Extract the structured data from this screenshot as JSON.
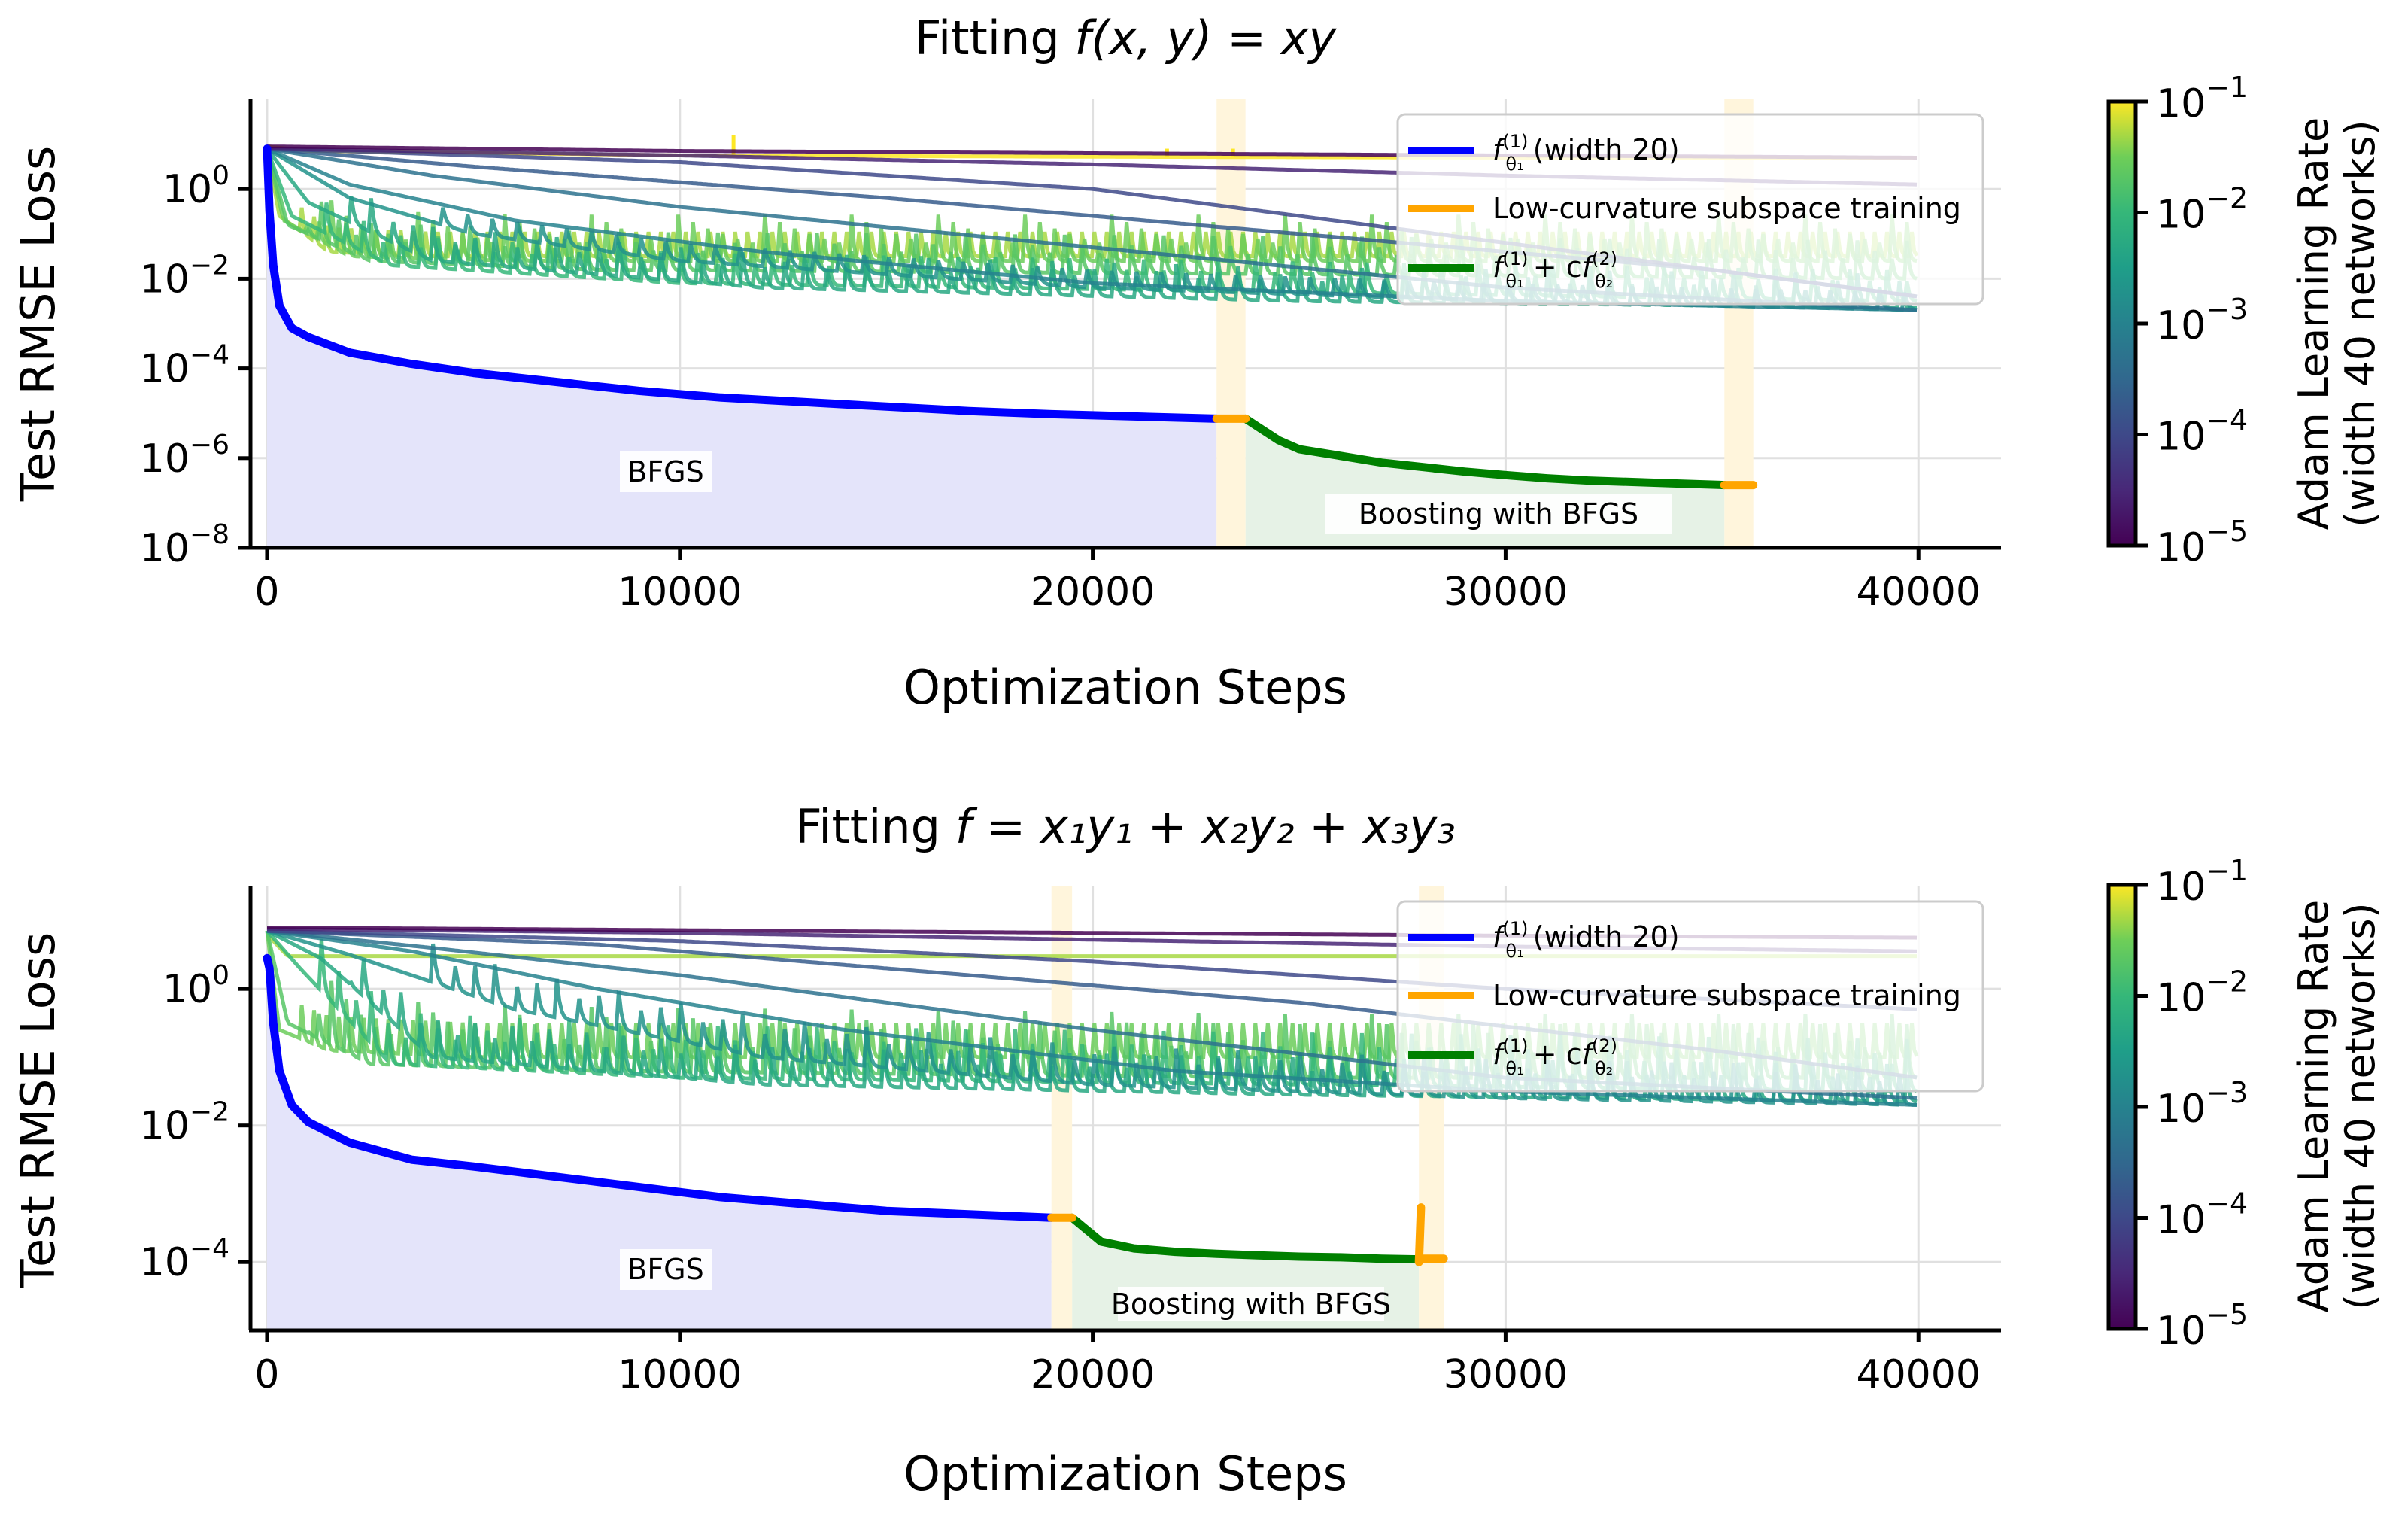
{
  "figure": {
    "colorbar": {
      "label_line1": "Adam Learning Rate",
      "label_line2": "(width 40 networks)",
      "range": [
        1e-05,
        0.1
      ],
      "colormap": "viridis",
      "tick_labels": [
        {
          "base": "10",
          "exp": "−1",
          "value": 0.1
        },
        {
          "base": "10",
          "exp": "−2",
          "value": 0.01
        },
        {
          "base": "10",
          "exp": "−3",
          "value": 0.001
        },
        {
          "base": "10",
          "exp": "−4",
          "value": 0.0001
        },
        {
          "base": "10",
          "exp": "−5",
          "value": 1e-05
        }
      ]
    },
    "legend": {
      "entries": [
        {
          "label_prefix": "f",
          "label_sup": "(1)",
          "label_sub": "θ₁",
          "label_suffix": " (width 20)",
          "color": "#0000ff"
        },
        {
          "label_full": "Low-curvature subspace training",
          "color": "#ffa500"
        },
        {
          "label_prefix": "f",
          "label_sup": "(1)",
          "label_sub": "θ₁",
          "label_plus": " + c",
          "label_f2": "f",
          "label_sup2": "(2)",
          "label_sub2": "θ₂",
          "color": "#008000"
        }
      ]
    },
    "colors": {
      "bfgs": "#0000ff",
      "subspace": "#ffa500",
      "boost": "#008000",
      "bfgs_fill": "#e4e4fa",
      "boost_fill": "#e6f2e6",
      "subspace_fill": "#fff5dc"
    }
  },
  "chart_data": [
    {
      "type": "line",
      "title_prefix": "Fitting ",
      "title_math": "f(x, y) = xy",
      "xlabel": "Optimization Steps",
      "ylabel": "Test RMSE Loss",
      "xlim": [
        -400,
        42000
      ],
      "ylim_log10": [
        -8,
        2
      ],
      "xticks": [
        {
          "value": 0,
          "label": "0"
        },
        {
          "value": 10000,
          "label": "10000"
        },
        {
          "value": 20000,
          "label": "20000"
        },
        {
          "value": 30000,
          "label": "30000"
        },
        {
          "value": 40000,
          "label": "40000"
        }
      ],
      "yticks": [
        {
          "exp10": 0,
          "base": "10",
          "exp": "0"
        },
        {
          "exp10": -2,
          "base": "10",
          "exp": "−2"
        },
        {
          "exp10": -4,
          "base": "10",
          "exp": "−4"
        },
        {
          "exp10": -6,
          "base": "10",
          "exp": "−6"
        },
        {
          "exp10": -8,
          "base": "10",
          "exp": "−8"
        }
      ],
      "annotations": {
        "bfgs": "BFGS",
        "boost": "Boosting with BFGS"
      },
      "bfgs_series": {
        "name": "BFGS (width 20)",
        "x": [
          0,
          60,
          150,
          300,
          600,
          1000,
          2000,
          3500,
          5000,
          7000,
          9000,
          11000,
          13000,
          15000,
          17000,
          19000,
          21000,
          23000
        ],
        "log10_y": [
          0.9,
          -0.5,
          -1.7,
          -2.6,
          -3.1,
          -3.3,
          -3.65,
          -3.9,
          -4.1,
          -4.3,
          -4.5,
          -4.65,
          -4.75,
          -4.85,
          -4.95,
          -5.02,
          -5.07,
          -5.12
        ]
      },
      "subspace_segments": [
        {
          "x": [
            23000,
            23700
          ],
          "log10_y": [
            -5.12,
            -5.12
          ]
        },
        {
          "x": [
            35300,
            36000
          ],
          "log10_y": [
            -6.6,
            -6.6
          ]
        }
      ],
      "boost_series": {
        "x": [
          23700,
          24000,
          24500,
          25000,
          26000,
          27000,
          28000,
          29000,
          30000,
          31000,
          32000,
          33000,
          34000,
          35300
        ],
        "log10_y": [
          -5.12,
          -5.3,
          -5.6,
          -5.8,
          -5.95,
          -6.1,
          -6.2,
          -6.3,
          -6.38,
          -6.45,
          -6.5,
          -6.53,
          -6.56,
          -6.6
        ]
      },
      "bfgs_fill_x": [
        0,
        23000
      ],
      "subspace_fill_x": [
        [
          23000,
          23700
        ],
        [
          35300,
          36000
        ]
      ],
      "boost_fill_x": [
        23700,
        35300
      ],
      "adam_series": [
        {
          "lr": 0.1,
          "x": [
            0,
            1000,
            10000,
            20000,
            30000,
            40000
          ],
          "log10_y": [
            0.95,
            0.85,
            0.75,
            0.72,
            0.7,
            0.7
          ],
          "spikes": [
            {
              "x": 11300,
              "log10_y": 1.2
            },
            {
              "x": 21800,
              "log10_y": 0.9
            },
            {
              "x": 23400,
              "log10_y": 0.9
            }
          ]
        },
        {
          "lr": 0.05,
          "x": [
            0,
            300,
            1500,
            4000,
            20000,
            40000
          ],
          "log10_y": [
            0.9,
            -0.6,
            -1.4,
            -1.5,
            -1.5,
            -1.5
          ],
          "osc": {
            "period": 300,
            "start": 800,
            "amp": 1.2
          }
        },
        {
          "lr": 0.03,
          "x": [
            0,
            400,
            2000,
            6000,
            20000,
            40000
          ],
          "log10_y": [
            0.9,
            -0.7,
            -1.5,
            -1.6,
            -1.6,
            -1.6
          ],
          "osc": {
            "period": 350,
            "start": 900,
            "amp": 1.1
          }
        },
        {
          "lr": 0.02,
          "x": [
            0,
            500,
            2500,
            8000,
            25000,
            40000
          ],
          "log10_y": [
            0.9,
            -0.8,
            -1.6,
            -1.8,
            -1.9,
            -2.0
          ],
          "osc": {
            "period": 400,
            "start": 1000,
            "amp": 1.0
          }
        },
        {
          "lr": 0.01,
          "x": [
            0,
            600,
            3000,
            10000,
            25000,
            40000
          ],
          "log10_y": [
            0.9,
            -0.6,
            -1.7,
            -2.1,
            -2.3,
            -2.5
          ],
          "osc": {
            "period": 450,
            "start": 1200,
            "amp": 1.0
          }
        },
        {
          "lr": 0.005,
          "x": [
            0,
            1000,
            4000,
            12000,
            25000,
            40000
          ],
          "log10_y": [
            0.9,
            -0.3,
            -1.6,
            -2.2,
            -2.5,
            -2.65
          ],
          "osc": {
            "period": 500,
            "start": 2000,
            "amp": 0.8
          }
        },
        {
          "lr": 0.002,
          "x": [
            0,
            2000,
            5000,
            10000,
            20000,
            30000,
            40000
          ],
          "log10_y": [
            0.9,
            -0.2,
            -1.0,
            -1.6,
            -2.2,
            -2.5,
            -2.7
          ],
          "osc": {
            "period": 600,
            "start": 4000,
            "amp": 0.6
          }
        },
        {
          "lr": 0.001,
          "x": [
            0,
            2000,
            6000,
            12000,
            20000,
            30000,
            40000
          ],
          "log10_y": [
            0.9,
            0.1,
            -0.7,
            -1.4,
            -2.1,
            -2.5,
            -2.7
          ]
        },
        {
          "lr": 0.0005,
          "x": [
            0,
            4000,
            10000,
            20000,
            30000,
            40000
          ],
          "log10_y": [
            0.9,
            0.3,
            -0.4,
            -1.3,
            -2.2,
            -2.7
          ]
        },
        {
          "lr": 0.0002,
          "x": [
            0,
            5000,
            15000,
            25000,
            35000,
            40000
          ],
          "log10_y": [
            0.9,
            0.5,
            -0.2,
            -1.0,
            -1.8,
            -2.4
          ]
        },
        {
          "lr": 0.0001,
          "x": [
            0,
            10000,
            20000,
            30000,
            40000
          ],
          "log10_y": [
            0.9,
            0.6,
            0.0,
            -1.2,
            -2.4
          ]
        },
        {
          "lr": 3e-05,
          "x": [
            0,
            10000,
            20000,
            30000,
            40000
          ],
          "log10_y": [
            0.9,
            0.75,
            0.55,
            0.3,
            0.1
          ]
        },
        {
          "lr": 1e-05,
          "x": [
            0,
            10000,
            20000,
            30000,
            40000
          ],
          "log10_y": [
            0.95,
            0.85,
            0.8,
            0.75,
            0.7
          ]
        }
      ]
    },
    {
      "type": "line",
      "title_prefix": "Fitting ",
      "title_math": "f = x₁y₁ + x₂y₂ + x₃y₃",
      "xlabel": "Optimization Steps",
      "ylabel": "Test RMSE Loss",
      "xlim": [
        -400,
        42000
      ],
      "ylim_log10": [
        -5,
        1.5
      ],
      "xticks": [
        {
          "value": 0,
          "label": "0"
        },
        {
          "value": 10000,
          "label": "10000"
        },
        {
          "value": 20000,
          "label": "20000"
        },
        {
          "value": 30000,
          "label": "30000"
        },
        {
          "value": 40000,
          "label": "40000"
        }
      ],
      "yticks": [
        {
          "exp10": 0,
          "base": "10",
          "exp": "0"
        },
        {
          "exp10": -2,
          "base": "10",
          "exp": "−2"
        },
        {
          "exp10": -4,
          "base": "10",
          "exp": "−4"
        }
      ],
      "annotations": {
        "bfgs": "BFGS",
        "boost": "Boosting with BFGS"
      },
      "bfgs_series": {
        "name": "BFGS (width 20)",
        "x": [
          0,
          60,
          150,
          300,
          600,
          1000,
          2000,
          3500,
          5000,
          7000,
          9000,
          11000,
          13000,
          15000,
          17000,
          19000
        ],
        "log10_y": [
          0.45,
          0.3,
          -0.5,
          -1.2,
          -1.7,
          -1.95,
          -2.25,
          -2.5,
          -2.6,
          -2.75,
          -2.9,
          -3.05,
          -3.15,
          -3.25,
          -3.3,
          -3.35
        ]
      },
      "subspace_segments": [
        {
          "x": [
            19000,
            19500
          ],
          "log10_y": [
            -3.35,
            -3.35
          ]
        },
        {
          "x": [
            27900,
            27950
          ],
          "log10_y": [
            -4.0,
            -3.2
          ]
        },
        {
          "x": [
            27950,
            28500
          ],
          "log10_y": [
            -3.95,
            -3.95
          ]
        }
      ],
      "boost_series": {
        "x": [
          19500,
          19800,
          20200,
          21000,
          22000,
          23000,
          24000,
          25000,
          26000,
          27000,
          27900
        ],
        "log10_y": [
          -3.35,
          -3.5,
          -3.7,
          -3.8,
          -3.85,
          -3.88,
          -3.9,
          -3.92,
          -3.93,
          -3.95,
          -3.96
        ]
      },
      "bfgs_fill_x": [
        0,
        19000
      ],
      "subspace_fill_x": [
        [
          19000,
          19500
        ],
        [
          27900,
          28500
        ]
      ],
      "boost_fill_x": [
        19500,
        27900
      ],
      "adam_series": [
        {
          "lr": 0.05,
          "x": [
            0,
            500,
            5000,
            20000,
            40000
          ],
          "log10_y": [
            0.8,
            0.48,
            0.48,
            0.48,
            0.48
          ]
        },
        {
          "lr": 0.03,
          "x": [
            0,
            300,
            1500,
            5000,
            20000,
            40000
          ],
          "log10_y": [
            0.85,
            -0.6,
            -0.9,
            -1.0,
            -1.0,
            -1.0
          ],
          "osc": {
            "period": 300,
            "start": 800,
            "amp": 1.1
          }
        },
        {
          "lr": 0.02,
          "x": [
            0,
            500,
            2500,
            8000,
            25000,
            40000
          ],
          "log10_y": [
            0.85,
            -0.5,
            -1.1,
            -1.2,
            -1.3,
            -1.3
          ],
          "osc": {
            "period": 350,
            "start": 1000,
            "amp": 1.0
          }
        },
        {
          "lr": 0.01,
          "x": [
            0,
            800,
            3000,
            10000,
            25000,
            40000
          ],
          "log10_y": [
            0.85,
            0.3,
            -1.1,
            -1.3,
            -1.4,
            -1.5
          ],
          "osc": {
            "period": 400,
            "start": 1300,
            "amp": 0.9
          }
        },
        {
          "lr": 0.005,
          "x": [
            0,
            1300,
            4000,
            12000,
            25000,
            40000
          ],
          "log10_y": [
            0.85,
            0.45,
            -1.0,
            -1.4,
            -1.55,
            -1.65
          ],
          "osc": {
            "period": 450,
            "start": 2000,
            "amp": 0.8
          }
        },
        {
          "lr": 0.002,
          "x": [
            0,
            2000,
            6000,
            12000,
            20000,
            30000,
            40000
          ],
          "log10_y": [
            0.85,
            0.5,
            -0.3,
            -1.0,
            -1.4,
            -1.6,
            -1.7
          ],
          "osc": {
            "period": 500,
            "start": 4000,
            "amp": 0.6
          }
        },
        {
          "lr": 0.001,
          "x": [
            0,
            3500,
            8000,
            14000,
            22000,
            30000,
            40000
          ],
          "log10_y": [
            0.85,
            0.55,
            0.0,
            -0.6,
            -1.2,
            -1.5,
            -1.7
          ]
        },
        {
          "lr": 0.0005,
          "x": [
            0,
            4000,
            10000,
            20000,
            30000,
            40000
          ],
          "log10_y": [
            0.85,
            0.6,
            0.2,
            -0.6,
            -1.3,
            -1.6
          ]
        },
        {
          "lr": 0.0002,
          "x": [
            0,
            8000,
            15000,
            25000,
            35000,
            40000
          ],
          "log10_y": [
            0.85,
            0.65,
            0.3,
            -0.2,
            -0.9,
            -1.3
          ]
        },
        {
          "lr": 0.0001,
          "x": [
            0,
            10000,
            20000,
            30000,
            40000
          ],
          "log10_y": [
            0.85,
            0.7,
            0.4,
            0.0,
            -0.3
          ]
        },
        {
          "lr": 3e-05,
          "x": [
            0,
            10000,
            20000,
            30000,
            40000
          ],
          "log10_y": [
            0.88,
            0.82,
            0.72,
            0.62,
            0.55
          ]
        },
        {
          "lr": 1e-05,
          "x": [
            0,
            10000,
            20000,
            30000,
            40000
          ],
          "log10_y": [
            0.9,
            0.86,
            0.82,
            0.78,
            0.75
          ]
        }
      ]
    }
  ]
}
